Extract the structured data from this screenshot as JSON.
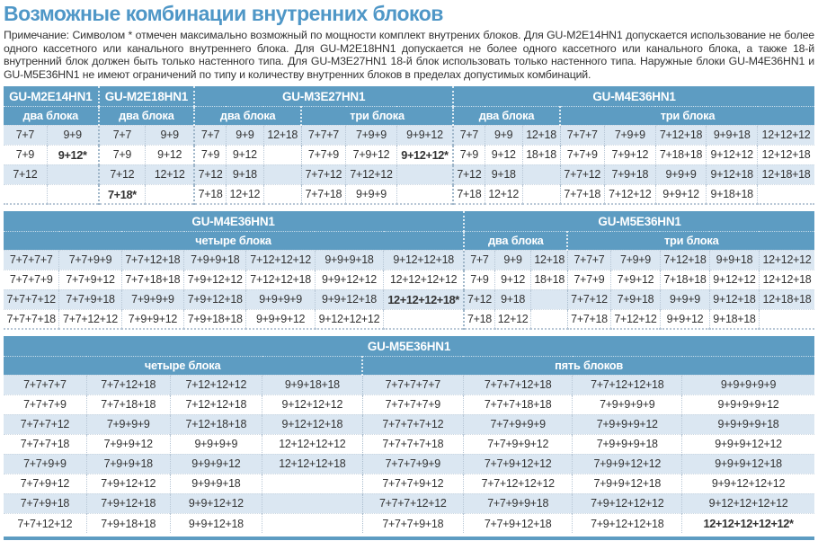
{
  "page": {
    "title": "Возможные комбинации внутренних блоков",
    "note": "Примечание: Символом * отмечен максимально возможный по мощности комплект внутрених блоков. Для GU-M2E14HN1 допускается использование не более одного кассетного или канального внутреннего блока. Для GU-M2E18HN1 допускается не более одного кассетного или канального блока, а также 18-й внутренний блок должен быть только настенного типа. Для GU-M3E27HN1 18-й блок использовать только настенного типа. Наружные блоки GU-M4E36HN1 и GU-M5E36HN1 не имеют ограничений по типу и количеству внутренних блоков в пределах допустимых комбинаций."
  },
  "colors": {
    "title": "#4f97c7",
    "header_bg": "#5d9cc2",
    "row_alt": "#dbe7f2",
    "cell_text": "#333333"
  },
  "tables": [
    {
      "groups": [
        {
          "model": "GU-M2E14HN1",
          "sections": [
            {
              "label": "два блока",
              "cols": 2
            }
          ]
        },
        {
          "model": "GU-M2E18HN1",
          "sections": [
            {
              "label": "два блока",
              "cols": 2
            }
          ]
        },
        {
          "model": "GU-M3E27HN1",
          "sections": [
            {
              "label": "два блока",
              "cols": 3
            },
            {
              "label": "три блока",
              "cols": 3
            }
          ]
        },
        {
          "model": "GU-M4E36HN1",
          "sections": [
            {
              "label": "два блока",
              "cols": 3
            },
            {
              "label": "три блока",
              "cols": 5
            }
          ]
        }
      ],
      "rows": [
        [
          "7+7",
          "9+9",
          "7+7",
          "9+9",
          "7+7",
          "9+9",
          "12+18",
          "7+7+7",
          "7+9+9",
          "9+9+12",
          "7+7",
          "9+9",
          "12+18",
          "7+7+7",
          "7+9+9",
          "7+12+18",
          "9+9+18",
          "12+12+12"
        ],
        [
          "7+9",
          "9+12*",
          "7+9",
          "9+12",
          "7+9",
          "9+12",
          "",
          "7+7+9",
          "7+9+12",
          "9+12+12*",
          "7+9",
          "9+12",
          "18+18",
          "7+7+9",
          "7+9+12",
          "7+18+18",
          "9+12+12",
          "12+12+18"
        ],
        [
          "7+12",
          "",
          "7+12",
          "12+12",
          "7+12",
          "9+18",
          "",
          "7+7+12",
          "7+12+12",
          "",
          "7+12",
          "9+18",
          "",
          "7+7+12",
          "7+9+18",
          "9+9+9",
          "9+12+18",
          "12+18+18"
        ],
        [
          "",
          "",
          "7+18*",
          "",
          "7+18",
          "12+12",
          "",
          "7+7+18",
          "9+9+9",
          "",
          "7+18",
          "12+12",
          "",
          "7+7+18",
          "7+12+12",
          "9+9+12",
          "9+18+18",
          ""
        ]
      ]
    },
    {
      "groups": [
        {
          "model": "GU-M4E36HN1",
          "sections": [
            {
              "label": "четыре блока",
              "cols": 7
            }
          ]
        },
        {
          "model": "GU-M5E36HN1",
          "sections": [
            {
              "label": "два блока",
              "cols": 3
            },
            {
              "label": "три блока",
              "cols": 5
            }
          ]
        }
      ],
      "rows": [
        [
          "7+7+7+7",
          "7+7+9+9",
          "7+7+12+18",
          "7+9+9+18",
          "7+12+12+12",
          "9+9+9+18",
          "9+12+12+18",
          "7+7",
          "9+9",
          "12+18",
          "7+7+7",
          "7+9+9",
          "7+12+18",
          "9+9+18",
          "12+12+12"
        ],
        [
          "7+7+7+9",
          "7+7+9+12",
          "7+7+18+18",
          "7+9+12+12",
          "7+12+12+18",
          "9+9+12+12",
          "12+12+12+12",
          "7+9",
          "9+12",
          "18+18",
          "7+7+9",
          "7+9+12",
          "7+18+18",
          "9+12+12",
          "12+12+18"
        ],
        [
          "7+7+7+12",
          "7+7+9+18",
          "7+9+9+9",
          "7+9+12+18",
          "9+9+9+9",
          "9+9+12+18",
          "12+12+12+18*",
          "7+12",
          "9+18",
          "",
          "7+7+12",
          "7+9+18",
          "9+9+9",
          "9+12+18",
          "12+18+18"
        ],
        [
          "7+7+7+18",
          "7+7+12+12",
          "7+9+9+12",
          "7+9+18+18",
          "9+9+9+12",
          "9+12+12+12",
          "",
          "7+18",
          "12+12",
          "",
          "7+7+18",
          "7+12+12",
          "9+9+12",
          "9+18+18",
          ""
        ]
      ]
    },
    {
      "groups": [
        {
          "model": "GU-M5E36HN1",
          "sections": [
            {
              "label": "четыре блока",
              "cols": 4
            },
            {
              "label": "пять блоков",
              "cols": 4
            }
          ]
        }
      ],
      "rows": [
        [
          "7+7+7+7",
          "7+7+12+18",
          "7+12+12+12",
          "9+9+18+18",
          "7+7+7+7+7",
          "7+7+7+12+18",
          "7+7+12+12+18",
          "9+9+9+9+9"
        ],
        [
          "7+7+7+9",
          "7+7+18+18",
          "7+12+12+18",
          "9+12+12+12",
          "7+7+7+7+9",
          "7+7+7+18+18",
          "7+9+9+9+9",
          "9+9+9+9+12"
        ],
        [
          "7+7+7+12",
          "7+9+9+9",
          "7+12+18+18",
          "9+12+12+18",
          "7+7+7+7+12",
          "7+7+9+9+9",
          "7+9+9+9+12",
          "9+9+9+9+18"
        ],
        [
          "7+7+7+18",
          "7+9+9+12",
          "9+9+9+9",
          "12+12+12+12",
          "7+7+7+7+18",
          "7+7+9+9+12",
          "7+9+9+9+18",
          "9+9+9+12+12"
        ],
        [
          "7+7+9+9",
          "7+9+9+18",
          "9+9+9+12",
          "12+12+12+18",
          "7+7+7+9+9",
          "7+7+9+12+12",
          "7+9+9+12+12",
          "9+9+9+12+18"
        ],
        [
          "7+7+9+12",
          "7+9+12+12",
          "9+9+9+18",
          "",
          "7+7+7+9+12",
          "7+7+12+12+12",
          "7+9+9+12+18",
          "9+9+12+12+12"
        ],
        [
          "7+7+9+18",
          "7+9+12+18",
          "9+9+12+12",
          "",
          "7+7+7+12+12",
          "7+7+9+9+18",
          "7+9+12+12+12",
          "9+12+12+12+12"
        ],
        [
          "7+7+12+12",
          "7+9+18+18",
          "9+9+12+18",
          "",
          "7+7+7+9+18",
          "7+7+9+12+18",
          "7+9+12+12+18",
          "12+12+12+12+12*"
        ]
      ]
    }
  ]
}
